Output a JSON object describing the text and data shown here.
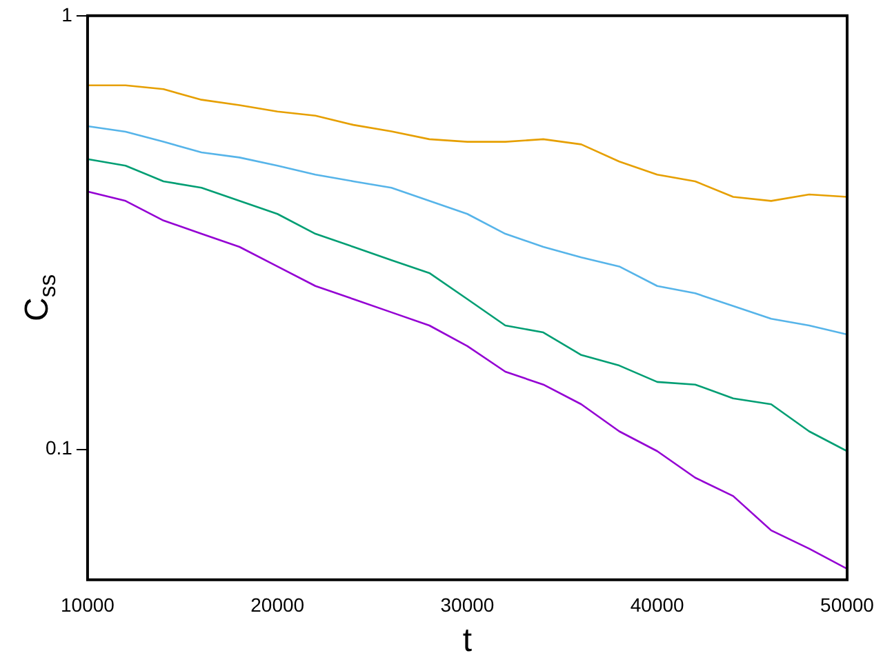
{
  "chart_data": {
    "type": "line",
    "xlabel": "t",
    "ylabel": "C$_{ss}$",
    "x": [
      10000,
      12000,
      14000,
      16000,
      18000,
      20000,
      22000,
      24000,
      26000,
      28000,
      30000,
      32000,
      34000,
      36000,
      38000,
      40000,
      42000,
      44000,
      46000,
      48000,
      50000
    ],
    "series": [
      {
        "color": "#e69f00",
        "values": [
          0.691,
          0.691,
          0.677,
          0.64,
          0.622,
          0.601,
          0.588,
          0.56,
          0.541,
          0.519,
          0.512,
          0.512,
          0.519,
          0.505,
          0.461,
          0.43,
          0.415,
          0.382,
          0.374,
          0.387,
          0.382
        ]
      },
      {
        "color": "#56b4e9",
        "values": [
          0.556,
          0.54,
          0.512,
          0.484,
          0.471,
          0.451,
          0.43,
          0.415,
          0.401,
          0.374,
          0.349,
          0.314,
          0.293,
          0.277,
          0.264,
          0.238,
          0.229,
          0.214,
          0.2,
          0.193,
          0.184
        ]
      },
      {
        "color": "#009e73",
        "values": [
          0.467,
          0.451,
          0.415,
          0.401,
          0.374,
          0.349,
          0.314,
          0.293,
          0.273,
          0.255,
          0.222,
          0.193,
          0.186,
          0.165,
          0.156,
          0.143,
          0.141,
          0.131,
          0.127,
          0.11,
          0.099
        ]
      },
      {
        "color": "#9400d3",
        "values": [
          0.393,
          0.374,
          0.337,
          0.314,
          0.293,
          0.264,
          0.238,
          0.222,
          0.207,
          0.193,
          0.173,
          0.151,
          0.141,
          0.127,
          0.11,
          0.099,
          0.086,
          0.078,
          0.065,
          0.059,
          0.053
        ]
      }
    ],
    "log": "y",
    "xlim": [
      10000,
      50000
    ],
    "xticks": [
      10000,
      20000,
      30000,
      40000,
      50000
    ],
    "ylim": [
      0.05,
      1
    ],
    "yticks": [
      0.1,
      1
    ],
    "grid": false,
    "legend": false,
    "marker": "none",
    "line_style": "solid"
  }
}
